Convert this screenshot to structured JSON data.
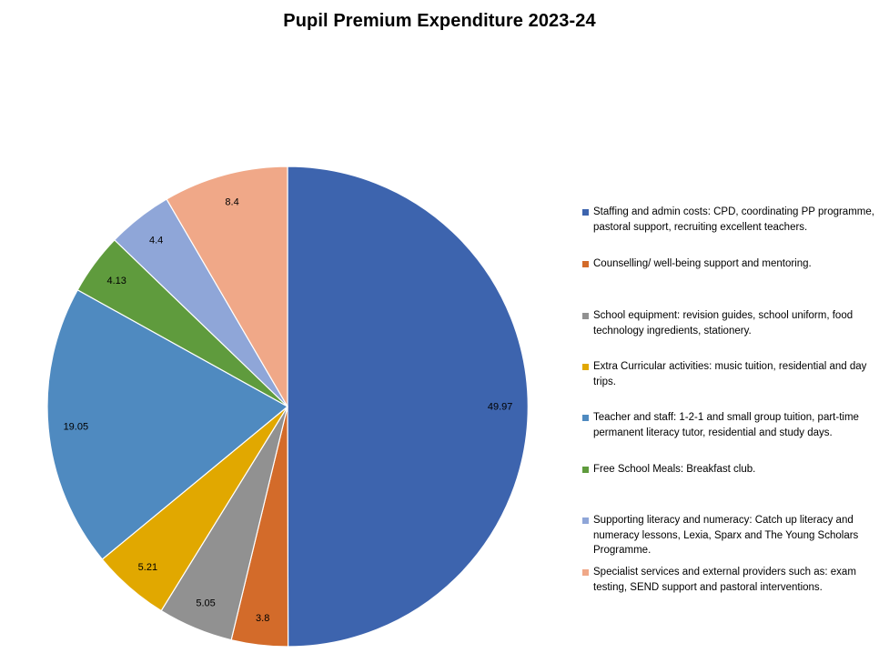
{
  "chart_data": {
    "type": "pie",
    "title": "Pupil Premium Expenditure 2023-24",
    "legend_position": "right",
    "data_labels": true,
    "slices": [
      {
        "label": "Staffing and admin costs: CPD, coordinating PP programme, pastoral support, recruiting excellent teachers.",
        "value": 49.97,
        "value_label": "49.97",
        "color": "#3D64AE"
      },
      {
        "label": "Counselling/ well-being support and mentoring.",
        "value": 3.8,
        "value_label": "3.8",
        "color": "#D36B2A"
      },
      {
        "label": "School equipment: revision guides, school uniform, food technology ingredients, stationery.",
        "value": 5.05,
        "value_label": "5.05",
        "color": "#919191"
      },
      {
        "label": "Extra Curricular activities: music tuition, residential and day trips.",
        "value": 5.21,
        "value_label": "5.21",
        "color": "#E1A800"
      },
      {
        "label": "Teacher and staff: 1-2-1 and small group tuition, part-time permanent literacy tutor, residential and study days.",
        "value": 19.05,
        "value_label": "19.05",
        "color": "#4F8AC0"
      },
      {
        "label": "Free School Meals: Breakfast club.",
        "value": 4.13,
        "value_label": "4.13",
        "color": "#5F9B3D"
      },
      {
        "label": "Supporting literacy and numeracy: Catch up literacy and numeracy lessons, Lexia, Sparx and The Young Scholars Programme.",
        "value": 4.4,
        "value_label": "4.4",
        "color": "#8FA6D8"
      },
      {
        "label": "Specialist services and external providers such as: exam testing, SEND support and pastoral interventions.",
        "value": 8.4,
        "value_label": "8.4",
        "color": "#F0A888"
      }
    ]
  }
}
